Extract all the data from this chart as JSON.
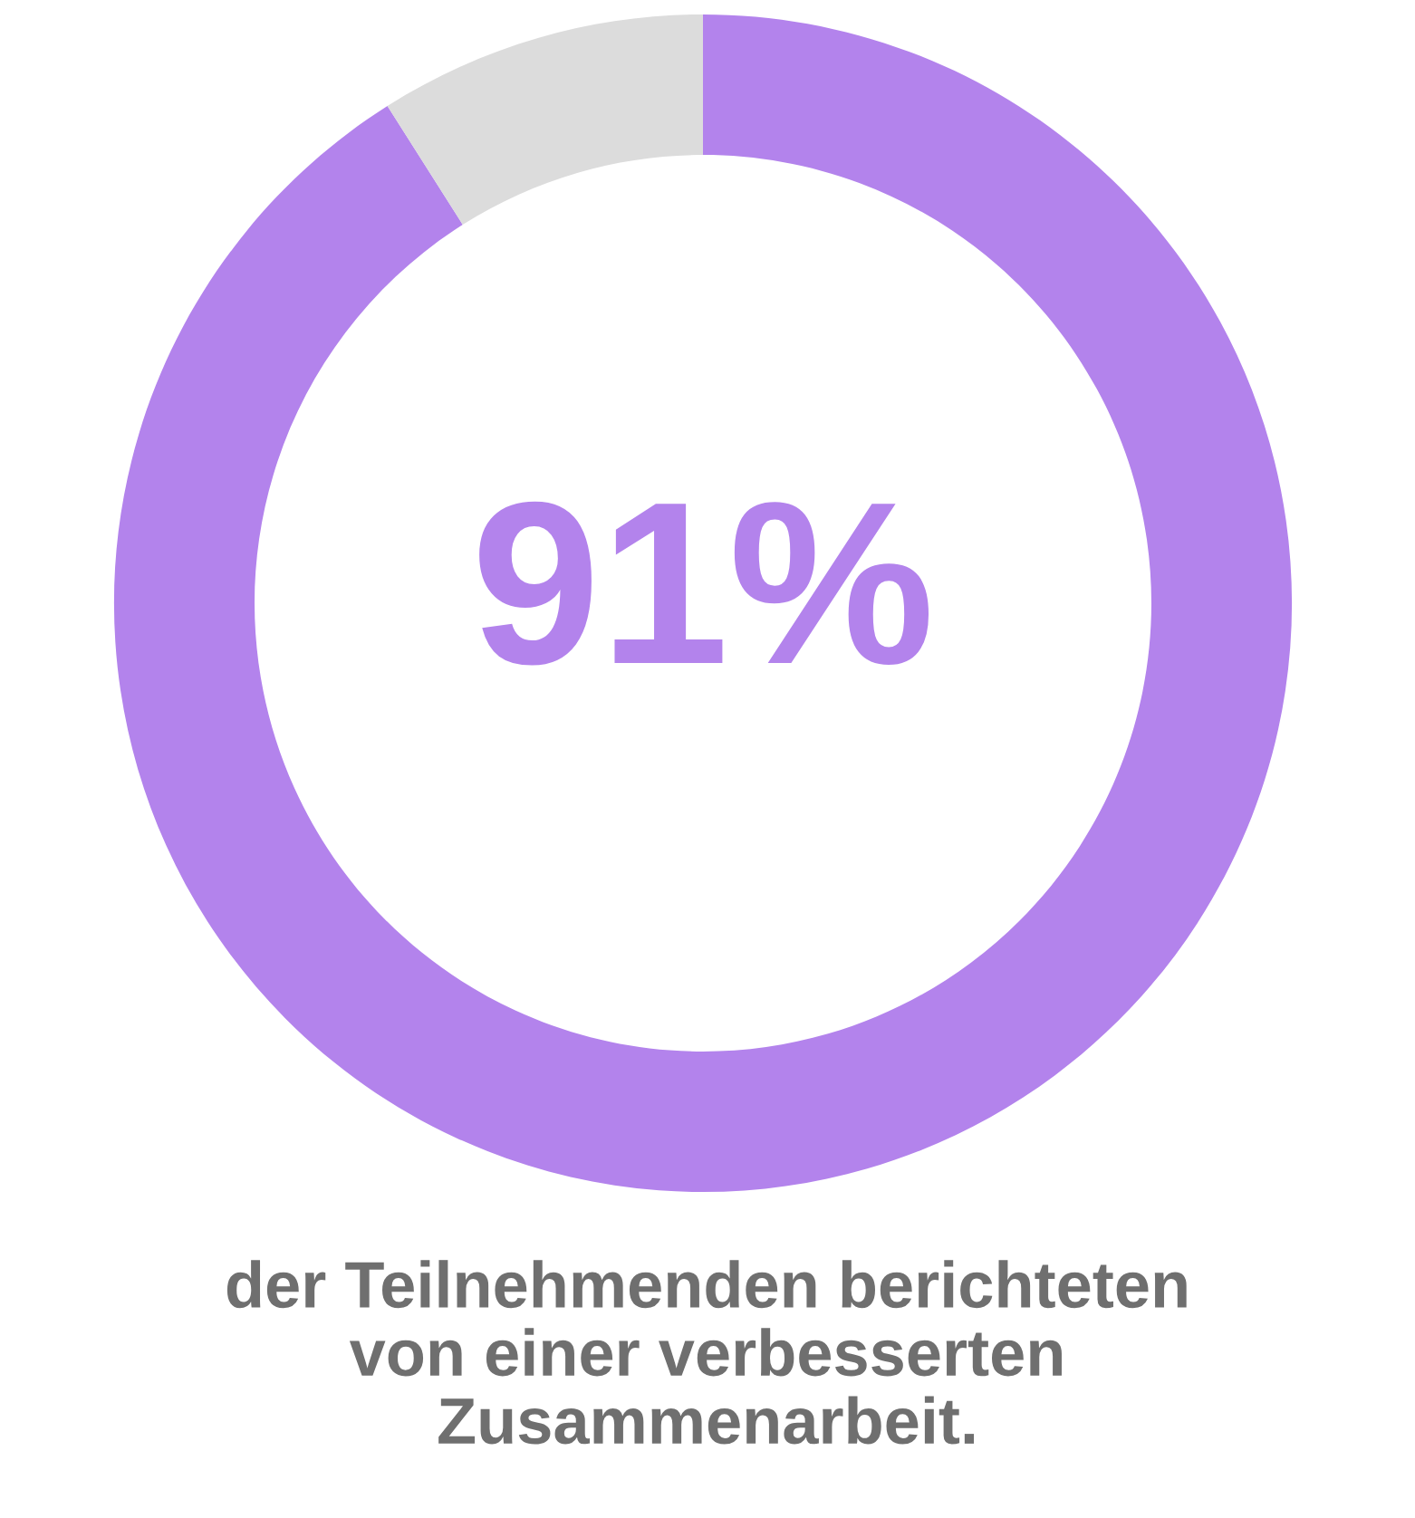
{
  "chart_data": {
    "type": "donut",
    "categories": [
      null,
      null
    ],
    "values": [
      91,
      9
    ],
    "colors": [
      "#b383ec",
      "#dcdcdc"
    ],
    "value_labels": [
      "91%",
      null
    ],
    "annotations": [
      "der Teilnehmenden berichteten\nvon einer verbesserten\nZusammenarbeit."
    ]
  }
}
